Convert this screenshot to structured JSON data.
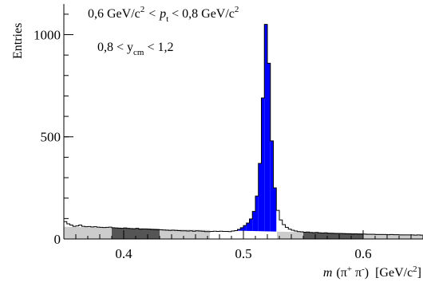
{
  "chart_data": {
    "type": "histogram",
    "title": "",
    "xlabel": "m (π⁺ π⁻)  [GeV/c²]",
    "xlabel_parts": {
      "m": "m",
      "particles_open": "(π",
      "plus": "+",
      "pi2": " π",
      "minus": "-",
      "particles_close": ")",
      "units_open": "[GeV/c",
      "units_sup": "2",
      "units_close": "]"
    },
    "ylabel": "Entries",
    "xlim": [
      0.35,
      0.65
    ],
    "ylim": [
      0,
      1150
    ],
    "xticks": [
      {
        "value": 0.4,
        "label": "0.4"
      },
      {
        "value": 0.5,
        "label": "0.5"
      },
      {
        "value": 0.6,
        "label": "0.6"
      }
    ],
    "yticks": [
      {
        "value": 0,
        "label": "0"
      },
      {
        "value": 500,
        "label": "500"
      },
      {
        "value": 1000,
        "label": "1000"
      }
    ],
    "annotations": {
      "line1": {
        "a": "0,6 GeV/c",
        "a_sup": "2",
        "b": " < p",
        "b_sub": "t",
        "c": " < 0,8 GeV/c",
        "c_sup": "2"
      },
      "line2": {
        "a": "0,8 < y",
        "a_sub": "cm",
        "b": " < 1,2"
      }
    },
    "signal_region": [
      0.472,
      0.528
    ],
    "sideband_bands": [
      {
        "x": [
          0.35,
          0.39
        ],
        "shade": "light"
      },
      {
        "x": [
          0.39,
          0.43
        ],
        "shade": "dark"
      },
      {
        "x": [
          0.43,
          0.472
        ],
        "shade": "light"
      },
      {
        "x": [
          0.528,
          0.55
        ],
        "shade": "light"
      },
      {
        "x": [
          0.55,
          0.6
        ],
        "shade": "dark"
      },
      {
        "x": [
          0.6,
          0.65
        ],
        "shade": "light"
      }
    ],
    "background": {
      "x": [
        0.35,
        0.65
      ],
      "y": [
        60,
        20
      ]
    },
    "bin_edges_start": 0.35,
    "bin_width": 0.0025,
    "counts": [
      85,
      74,
      68,
      62,
      64,
      68,
      62,
      60,
      61,
      59,
      60,
      58,
      57,
      56,
      57,
      58,
      55,
      54,
      53,
      52,
      54,
      52,
      51,
      50,
      52,
      48,
      49,
      49,
      48,
      47,
      46,
      45,
      45,
      44,
      43,
      42,
      43,
      42,
      41,
      40,
      40,
      39,
      40,
      38,
      40,
      39,
      38,
      36,
      36,
      37,
      38,
      37,
      38,
      37,
      37,
      36,
      39,
      41,
      47,
      55,
      66,
      78,
      98,
      135,
      210,
      370,
      690,
      1050,
      860,
      480,
      250,
      140,
      93,
      70,
      57,
      48,
      43,
      39,
      36,
      35,
      33,
      34,
      32,
      31,
      32,
      30,
      29,
      30,
      28,
      28,
      27,
      27,
      27,
      26,
      25,
      25,
      24,
      25,
      24,
      24,
      24,
      23,
      23,
      23,
      22,
      22,
      22,
      22,
      21,
      22,
      21,
      21,
      20,
      20,
      20,
      20,
      20,
      19,
      20,
      19
    ],
    "colors": {
      "signal": "#0000ff",
      "band_light": "#cccccc",
      "band_dark": "#555555",
      "line": "#000000"
    }
  }
}
